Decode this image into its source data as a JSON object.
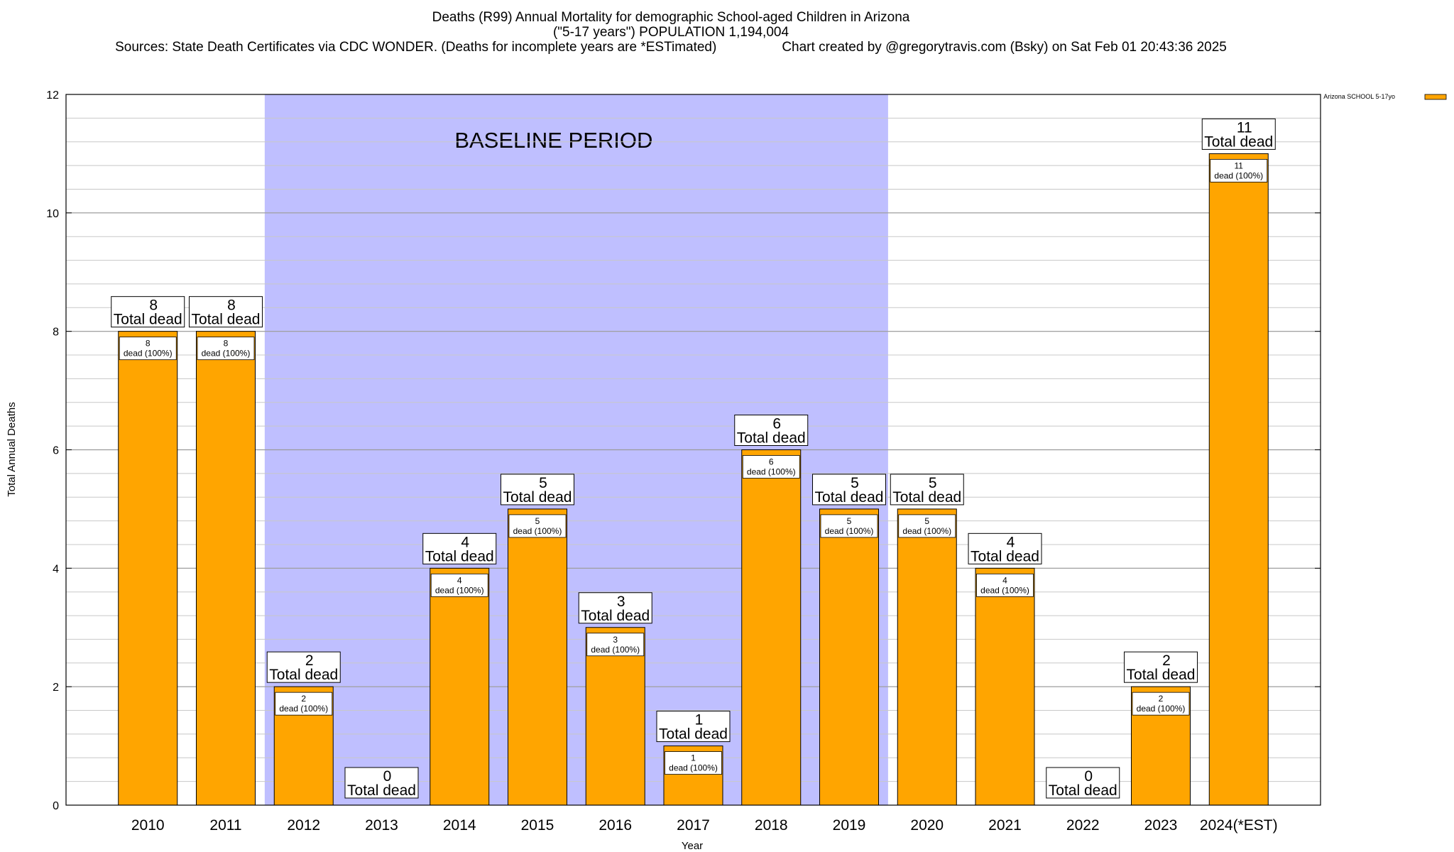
{
  "title": {
    "line1": "Deaths (R99) Annual Mortality for demographic School-aged Children in Arizona",
    "line2": "(\"5-17 years\") POPULATION 1,194,004",
    "line3_left": "Sources: State Death Certificates via CDC WONDER. (Deaths for incomplete years are *ESTimated)",
    "line3_right": "Chart created by @gregorytravis.com (Bsky) on Sat Feb 01 20:43:36 2025"
  },
  "chart_data": {
    "type": "bar",
    "title": "Deaths (R99) Annual Mortality for demographic School-aged Children in Arizona",
    "xlabel": "Year",
    "ylabel": "Total Annual Deaths",
    "ylim": [
      0,
      12
    ],
    "yticks": [
      0,
      2,
      4,
      6,
      8,
      10,
      12
    ],
    "grid": true,
    "legend_position": "top-right",
    "categories": [
      "2010",
      "2011",
      "2012",
      "2013",
      "2014",
      "2015",
      "2016",
      "2017",
      "2018",
      "2019",
      "2020",
      "2021",
      "2022",
      "2023",
      "2024(*EST)"
    ],
    "series": [
      {
        "name": "Arizona SCHOOL 5-17yo",
        "color": "#ffa500",
        "values": [
          8,
          8,
          2,
          0,
          4,
          5,
          3,
          1,
          6,
          5,
          5,
          4,
          0,
          2,
          11
        ]
      }
    ],
    "total_label_suffix": "Total dead",
    "bar_label_suffix": "dead (100%)",
    "annotation": {
      "text": "BASELINE PERIOD",
      "from_category": "2012",
      "to_category": "2019",
      "color": "#bfbfff"
    }
  },
  "colors": {
    "bar": "#ffa500",
    "baseline": "#bfbfff",
    "grid": "#c8c8c8"
  }
}
